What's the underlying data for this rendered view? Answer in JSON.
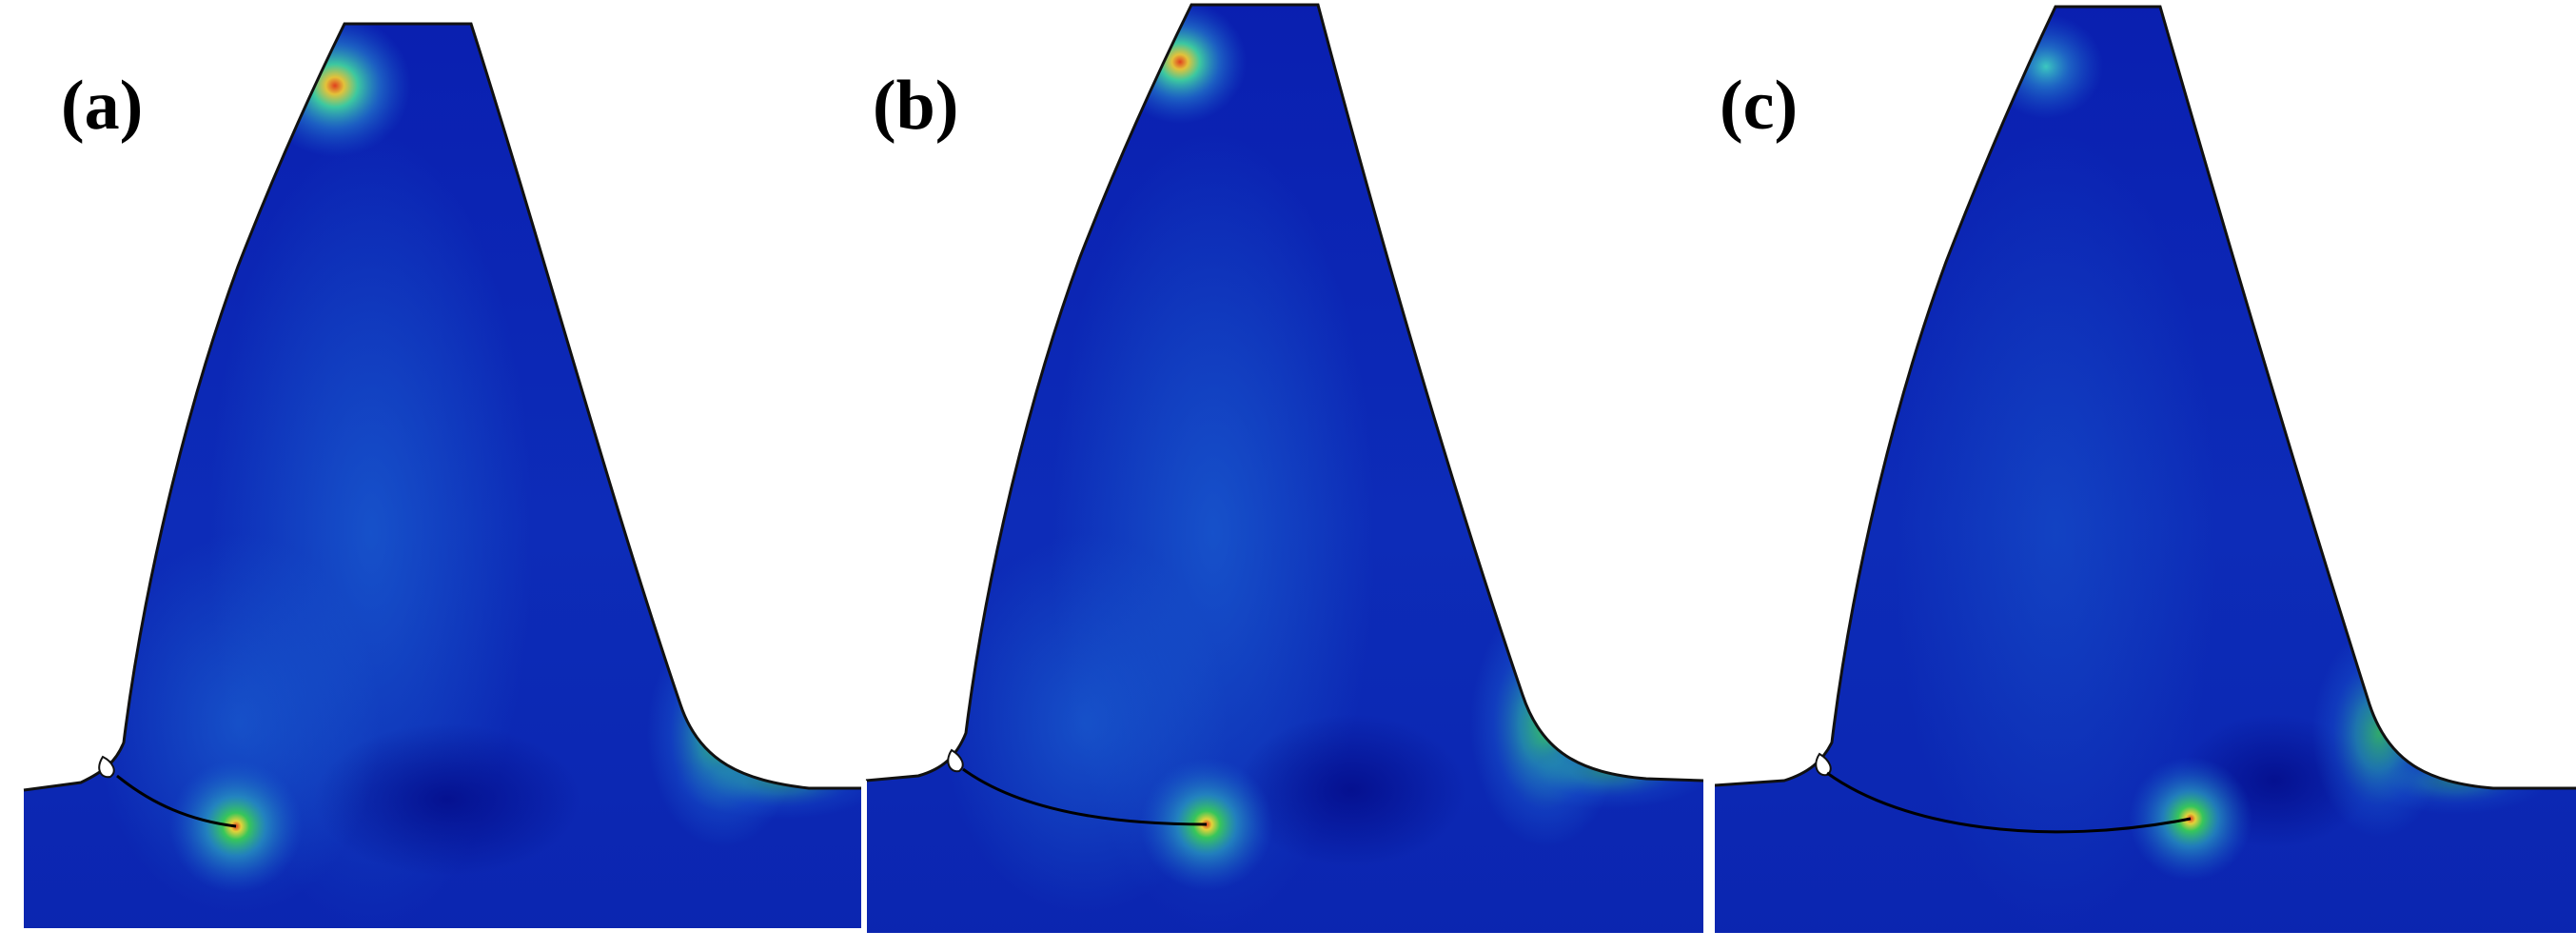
{
  "panels": [
    {
      "label": "(a)"
    },
    {
      "label": "(b)"
    },
    {
      "label": "(c)"
    }
  ],
  "colors": {
    "base_blue": "#0a1fb0",
    "dark_blue": "#0412a0",
    "mid_blue": "#1c5fd0",
    "cyan": "#2ec6c8",
    "green": "#37c65a",
    "yellow": "#e3d23a",
    "red": "#e0401e",
    "outline": "#111111",
    "crack": "#000000"
  }
}
